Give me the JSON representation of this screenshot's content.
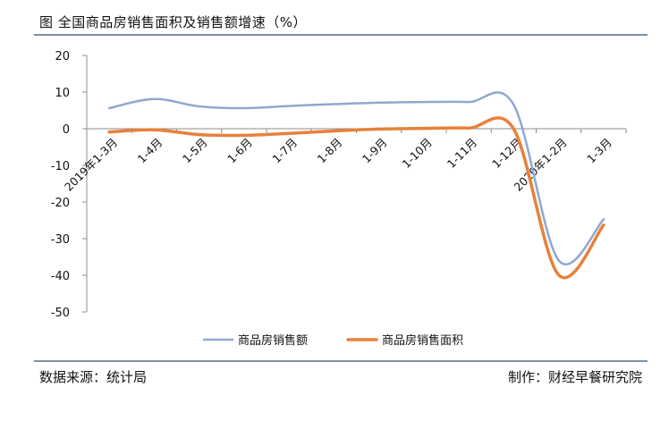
{
  "title": "图  全国商品房销售面积及销售额增速（%）",
  "footer": {
    "source": "数据来源：统计局",
    "credit": "制作：财经早餐研究院"
  },
  "colors": {
    "sales_amount": "#8fa8cf",
    "sales_area": "#e8813a",
    "axis": "#8c8c8c",
    "rule": "#7e8fa8"
  },
  "chart_data": {
    "type": "line",
    "categories": [
      "2019年1-3月",
      "1-4月",
      "1-5月",
      "1-6月",
      "1-7月",
      "1-8月",
      "1-9月",
      "1-10月",
      "1-11月",
      "1-12月",
      "2020年1-2月",
      "1-3月"
    ],
    "series": [
      {
        "name": "商品房销售额",
        "values": [
          5.6,
          8.1,
          6.1,
          5.6,
          6.2,
          6.7,
          7.1,
          7.3,
          7.3,
          6.5,
          -35.9,
          -24.7
        ]
      },
      {
        "name": "商品房销售面积",
        "values": [
          -0.9,
          -0.3,
          -1.6,
          -1.8,
          -1.3,
          -0.6,
          -0.1,
          0.1,
          0.2,
          -0.1,
          -39.9,
          -26.3
        ]
      }
    ],
    "ylim": [
      -50,
      20
    ],
    "yticks": [
      20,
      10,
      0,
      -10,
      -20,
      -30,
      -40,
      -50
    ],
    "grid": false,
    "legend_position": "bottom"
  }
}
